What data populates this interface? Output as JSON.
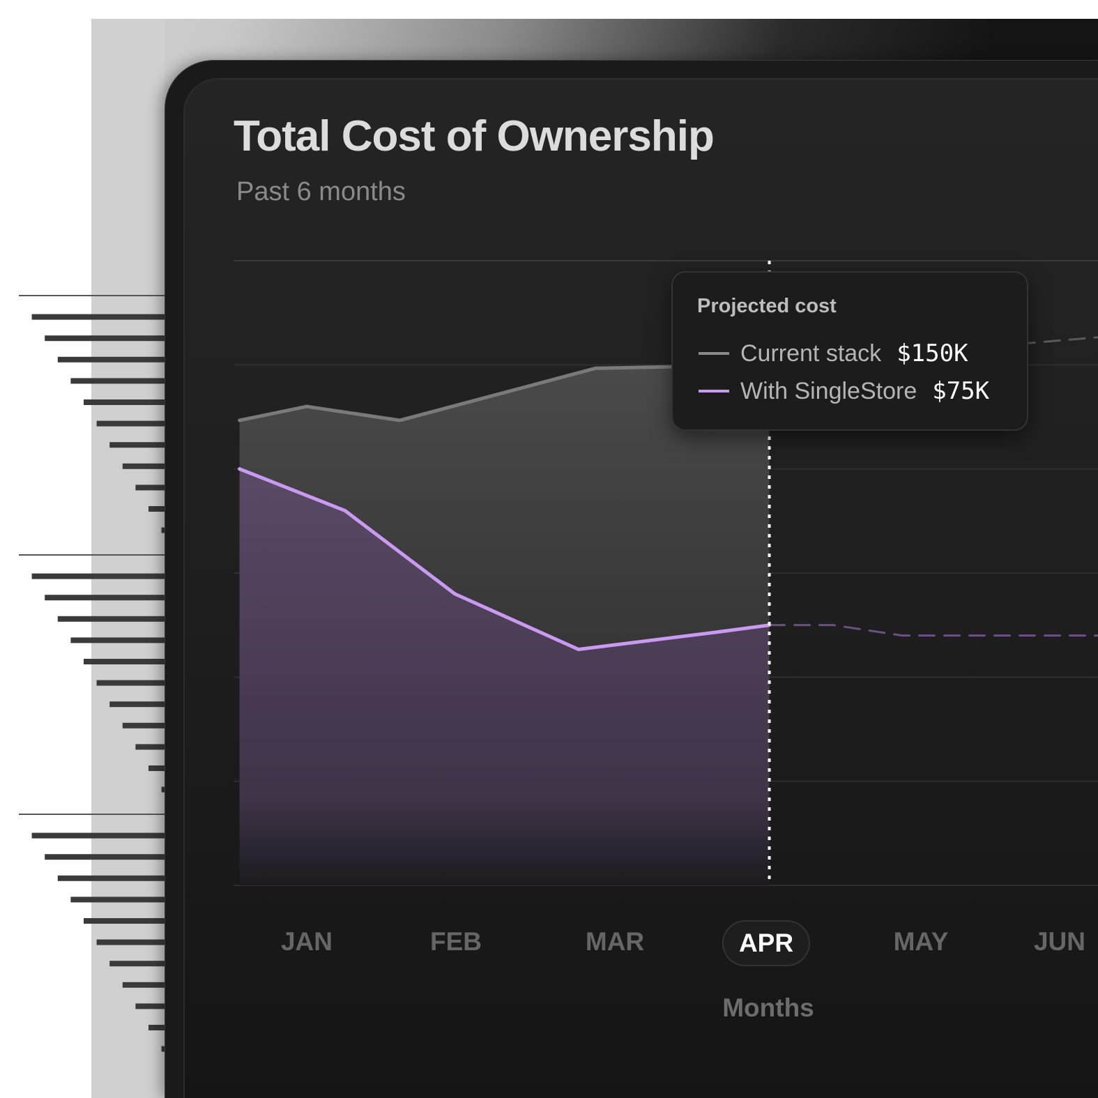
{
  "header": {
    "title": "Total Cost of Ownership",
    "subtitle": "Past 6 months"
  },
  "tooltip": {
    "title": "Projected cost",
    "rows": [
      {
        "label": "Current stack",
        "value": "$150K",
        "color": "#8a8a8a"
      },
      {
        "label": "With SingleStore",
        "value": "$75K",
        "color": "#c99af0"
      }
    ]
  },
  "chart_data": {
    "type": "area",
    "title": "Total Cost of Ownership",
    "subtitle": "Past 6 months",
    "xlabel": "Months",
    "ylabel": "",
    "categories": [
      "JAN",
      "FEB",
      "MAR",
      "APR",
      "MAY",
      "JUN"
    ],
    "active_category": "APR",
    "ylim": [
      0,
      180
    ],
    "y_unit": "$K",
    "grid": true,
    "series": [
      {
        "name": "Current stack",
        "color": "#8a8a8a",
        "x": [
          -0.44,
          0,
          0.61,
          1.89,
          3.03
        ],
        "values": [
          134,
          138,
          134,
          149,
          150
        ],
        "projection": {
          "x": [
            3.03,
            5.2
          ],
          "values": [
            150,
            158
          ]
        }
      },
      {
        "name": "With SingleStore",
        "color": "#c99af0",
        "x": [
          -0.44,
          0.25,
          0.97,
          1.78,
          2.69,
          3.03
        ],
        "values": [
          120,
          108,
          84,
          68,
          73,
          75
        ],
        "projection": {
          "x": [
            3.03,
            3.45,
            3.9,
            5.2
          ],
          "values": [
            75,
            75,
            72,
            72
          ]
        }
      }
    ]
  }
}
